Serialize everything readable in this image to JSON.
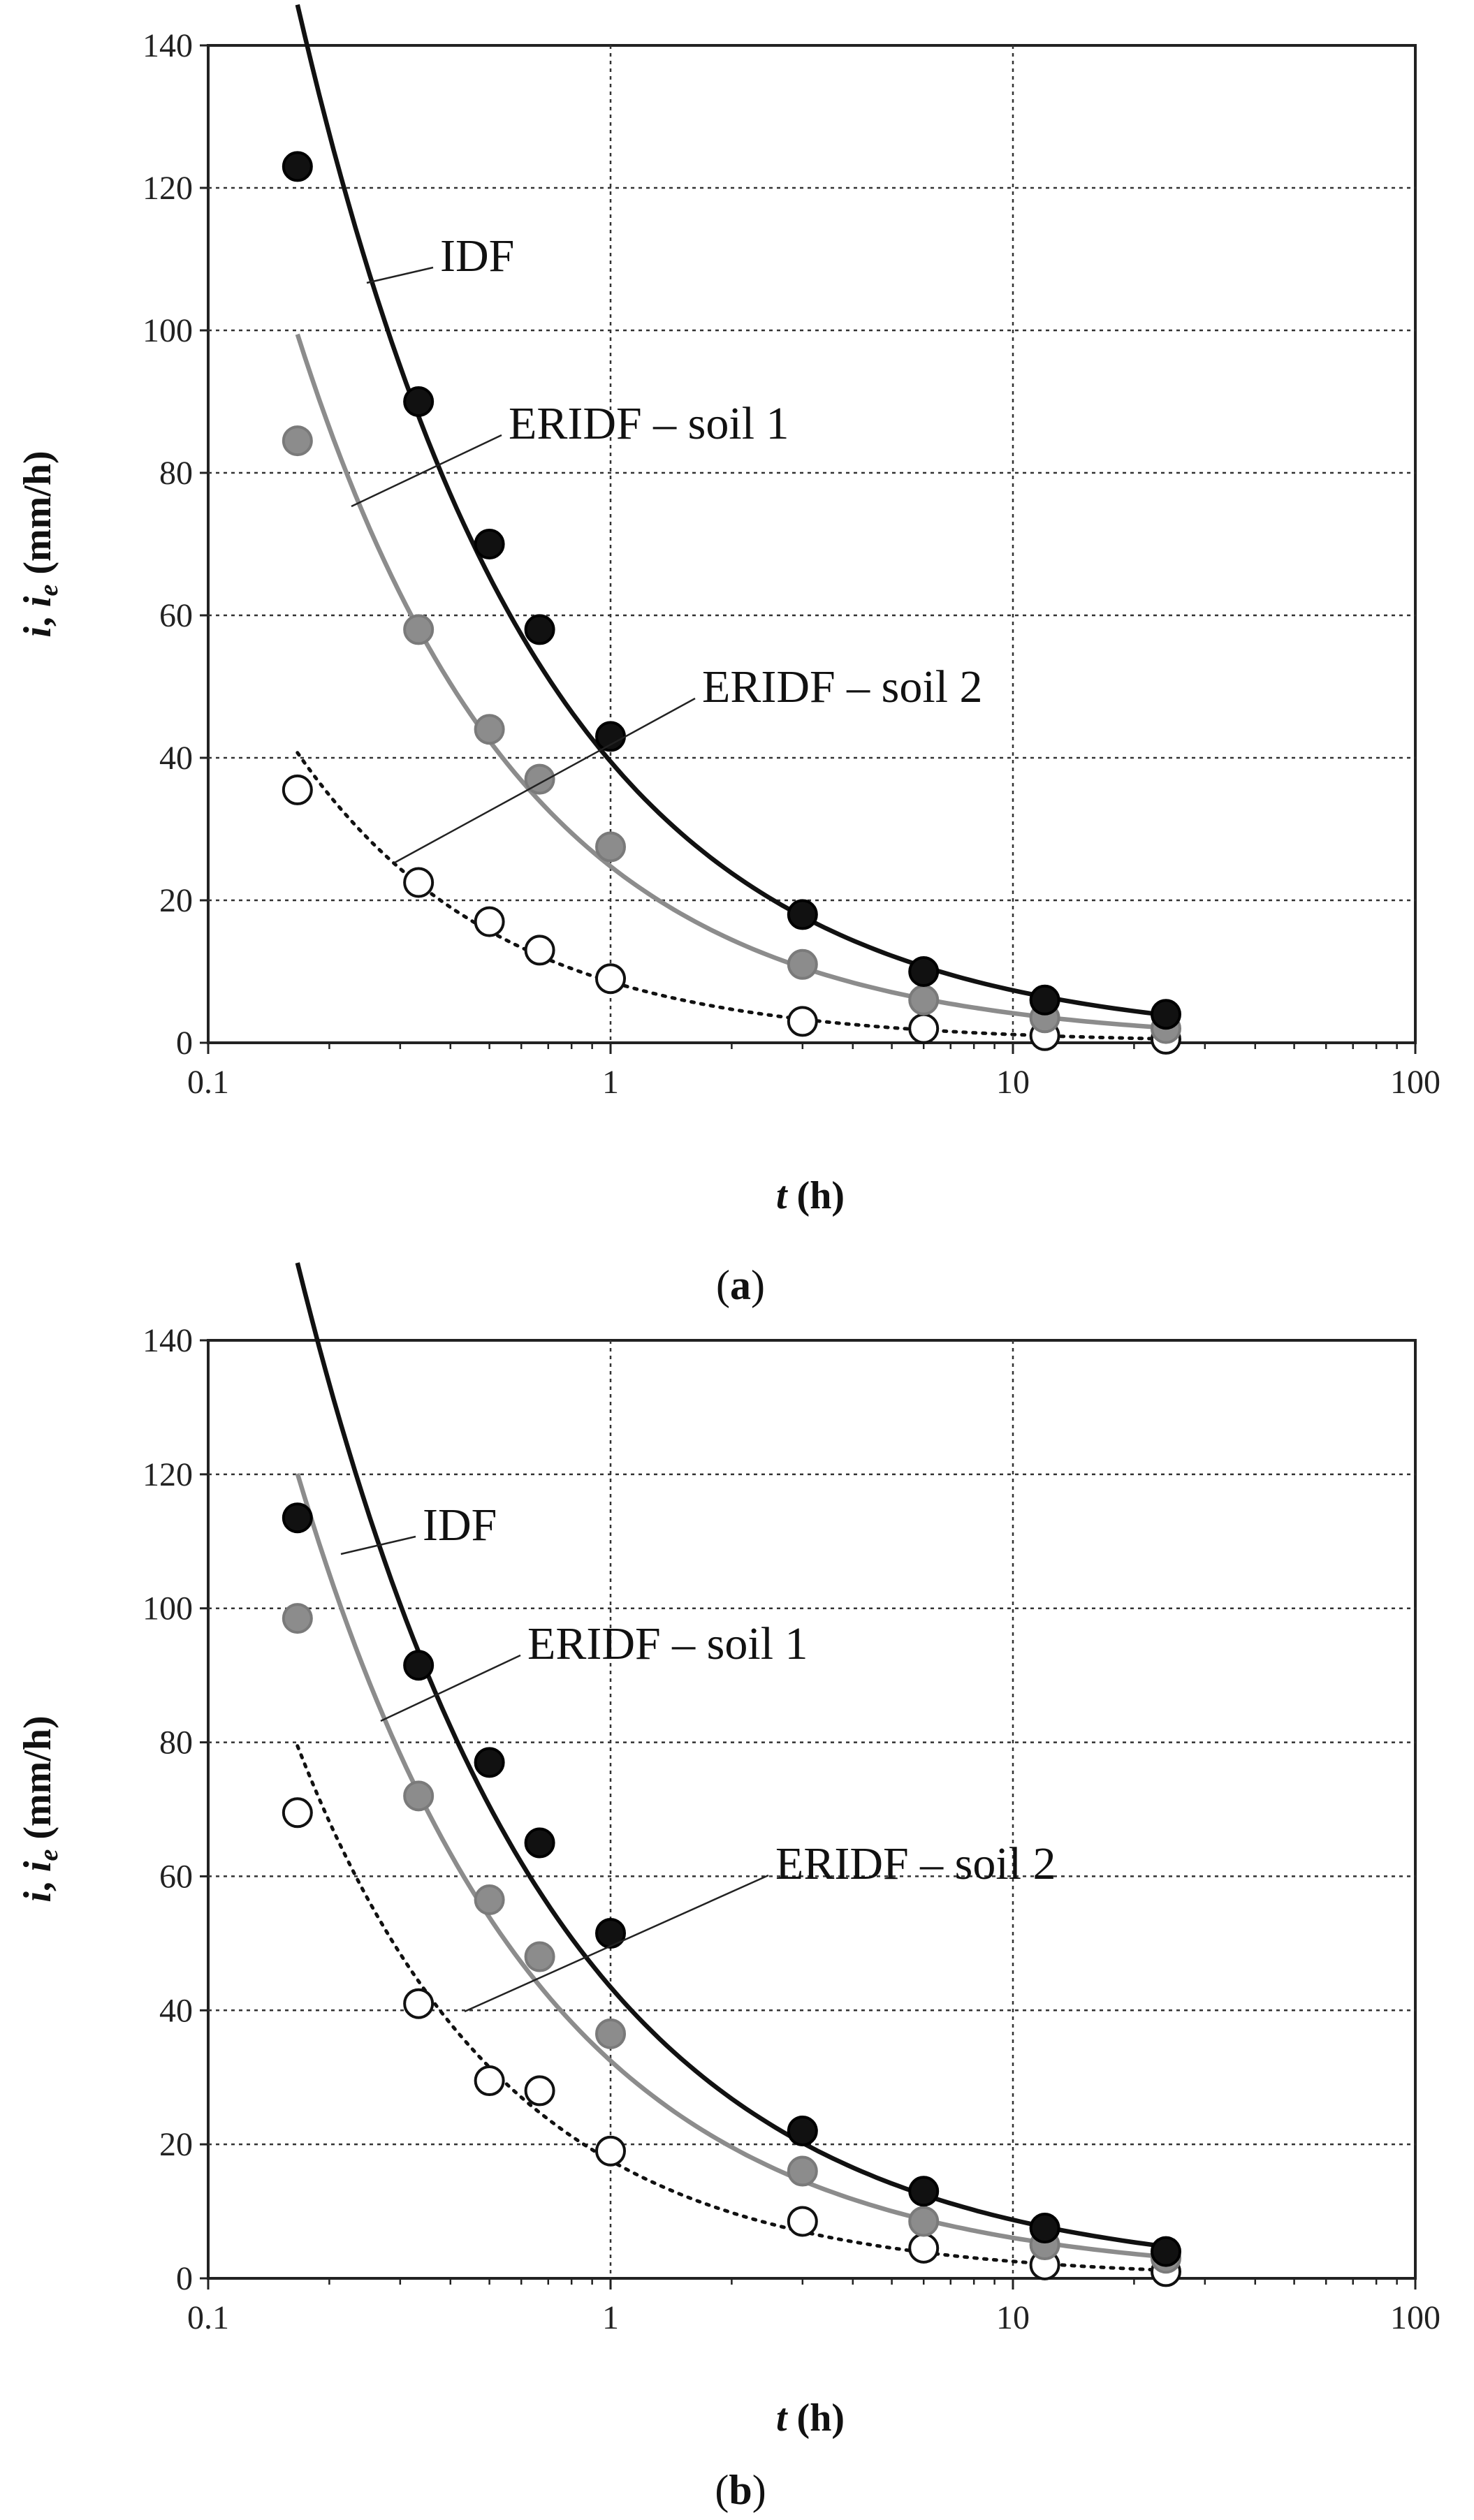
{
  "chart_data": [
    {
      "type": "scatter",
      "panel_label": "a",
      "xlabel": "t (h)",
      "ylabel": "i, ie (mm/h)",
      "xscale": "log",
      "xlim": [
        0.1,
        100
      ],
      "ylim": [
        0,
        140
      ],
      "xticks": [
        "0.1",
        "1",
        "10",
        "100"
      ],
      "yticks": [
        "0",
        "20",
        "40",
        "60",
        "80",
        "100",
        "120",
        "140"
      ],
      "grid": "vertical and horizontal, dotted",
      "legend": "inline labels with leader lines",
      "series": [
        {
          "name": "IDF",
          "marker": "filled-black",
          "line": "solid-black",
          "x": [
            0.1667,
            0.3333,
            0.5,
            0.6667,
            1,
            3,
            6,
            12,
            24
          ],
          "y": [
            123,
            90,
            70,
            58,
            43,
            18,
            10,
            6,
            4
          ]
        },
        {
          "name": "ERIDF – soil 1",
          "marker": "filled-gray",
          "line": "solid-gray",
          "x": [
            0.1667,
            0.3333,
            0.5,
            0.6667,
            1,
            3,
            6,
            12,
            24
          ],
          "y": [
            84.5,
            58,
            44,
            37,
            27.5,
            11,
            6,
            3.5,
            2
          ]
        },
        {
          "name": "ERIDF – soil 2",
          "marker": "open-circle",
          "line": "dotted-black",
          "x": [
            0.1667,
            0.3333,
            0.5,
            0.6667,
            1,
            3,
            6,
            12,
            24
          ],
          "y": [
            35.5,
            22.5,
            17,
            13,
            9,
            3,
            2,
            1,
            0.5
          ]
        }
      ]
    },
    {
      "type": "scatter",
      "panel_label": "b",
      "xlabel": "t (h)",
      "ylabel": "i, ie (mm/h)",
      "xscale": "log",
      "xlim": [
        0.1,
        100
      ],
      "ylim": [
        0,
        140
      ],
      "xticks": [
        "0.1",
        "1",
        "10",
        "100"
      ],
      "yticks": [
        "0",
        "20",
        "40",
        "60",
        "80",
        "100",
        "120",
        "140"
      ],
      "grid": "vertical and horizontal, dotted",
      "legend": "inline labels with leader lines",
      "series": [
        {
          "name": "IDF",
          "marker": "filled-black",
          "line": "solid-black",
          "x": [
            0.1667,
            0.3333,
            0.5,
            0.6667,
            1,
            3,
            6,
            12,
            24
          ],
          "y": [
            113.5,
            91.5,
            77,
            65,
            51.5,
            22,
            13,
            7.5,
            4
          ]
        },
        {
          "name": "ERIDF – soil 1",
          "marker": "filled-gray",
          "line": "solid-gray",
          "x": [
            0.1667,
            0.3333,
            0.5,
            0.6667,
            1,
            3,
            6,
            12,
            24
          ],
          "y": [
            98.5,
            72,
            56.5,
            48,
            36.5,
            16,
            8.5,
            5,
            3
          ]
        },
        {
          "name": "ERIDF – soil 2",
          "marker": "open-circle",
          "line": "dotted-black",
          "x": [
            0.1667,
            0.3333,
            0.5,
            0.6667,
            1,
            3,
            6,
            12,
            24
          ],
          "y": [
            69.5,
            41,
            29.5,
            28,
            19,
            8.5,
            4.5,
            2,
            1
          ]
        }
      ]
    }
  ],
  "colors": {
    "idf": "#111111",
    "soil1": "#8c8c8c",
    "soil2_fill": "#ffffff",
    "soil2_stroke": "#111111",
    "grid": "#333333"
  }
}
